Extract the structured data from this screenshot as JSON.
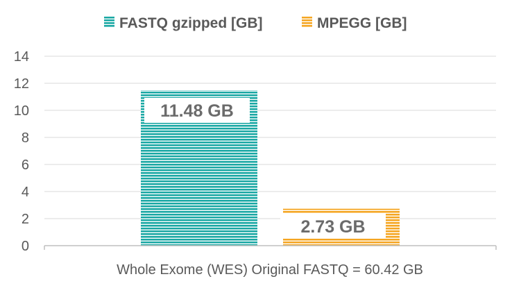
{
  "chart_data": {
    "type": "bar",
    "categories": [
      "Whole Exome (WES) Original FASTQ = 60.42 GB"
    ],
    "series": [
      {
        "name": "FASTQ gzipped [GB]",
        "values": [
          11.48
        ],
        "data_label": "11.48 GB",
        "color": "#1aa8a4"
      },
      {
        "name": "MPEGG [GB]",
        "values": [
          2.73
        ],
        "data_label": "2.73 GB",
        "color": "#f5a623"
      }
    ],
    "y_ticks": [
      "0",
      "2",
      "4",
      "6",
      "8",
      "10",
      "12",
      "14"
    ],
    "ylim": [
      0,
      14
    ],
    "grid": true,
    "legend_position": "top-center",
    "title": "",
    "xlabel": "",
    "ylabel": ""
  }
}
